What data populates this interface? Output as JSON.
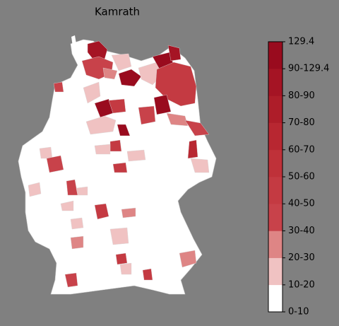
{
  "title": "Kamrath",
  "legend": {
    "labels": [
      "0-10",
      "10-20",
      "20-30",
      "30-40",
      "40-50",
      "50-60",
      "60-70",
      "70-80",
      "80-90",
      "90-129.4",
      "129.4"
    ],
    "colors": [
      "#ffffff",
      "#f0c2c2",
      "#de8585",
      "#c8424a",
      "#c43a42",
      "#bf3139",
      "#b82731",
      "#ae1d29",
      "#a51424",
      "#990b1e"
    ]
  }
}
